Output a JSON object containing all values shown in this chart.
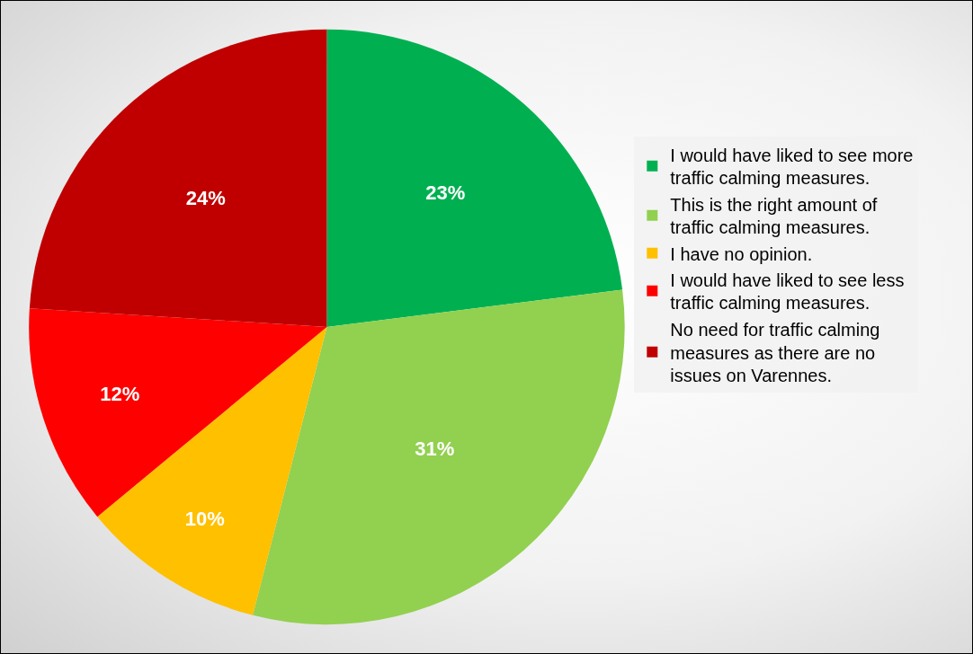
{
  "chart_data": {
    "type": "pie",
    "categories": [
      "I would have liked to see more traffic calming measures.",
      "This is the right amount of traffic calming measures.",
      "I have no opinion.",
      "I would have liked to see less traffic calming measures.",
      "No need for traffic calming measures as there are no issues on Varennes."
    ],
    "values": [
      23,
      31,
      10,
      12,
      24
    ],
    "value_labels": [
      "23%",
      "31%",
      "10%",
      "12%",
      "24%"
    ],
    "colors": [
      "#00b050",
      "#92d050",
      "#ffc000",
      "#ff0000",
      "#c00000"
    ],
    "legend": "right"
  }
}
